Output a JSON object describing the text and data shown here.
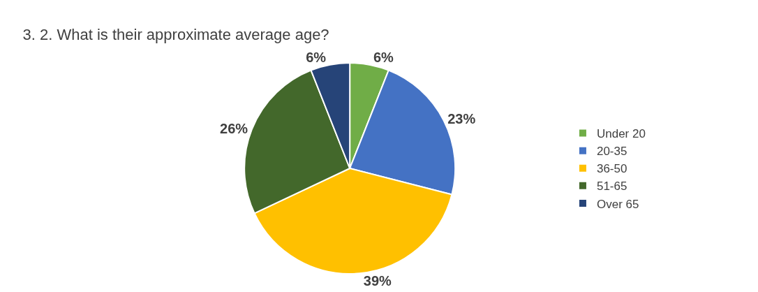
{
  "chart_data": {
    "type": "pie",
    "title": "3. 2. What is their approximate average age?",
    "categories": [
      "Under 20",
      "20-35",
      "36-50",
      "51-65",
      "Over 65"
    ],
    "values": [
      6,
      23,
      39,
      26,
      6
    ],
    "colors": [
      "#70ad47",
      "#4472c4",
      "#ffc000",
      "#43682b",
      "#264478"
    ],
    "value_labels": [
      "6%",
      "23%",
      "39%",
      "26%",
      "6%"
    ],
    "legend": "right"
  }
}
